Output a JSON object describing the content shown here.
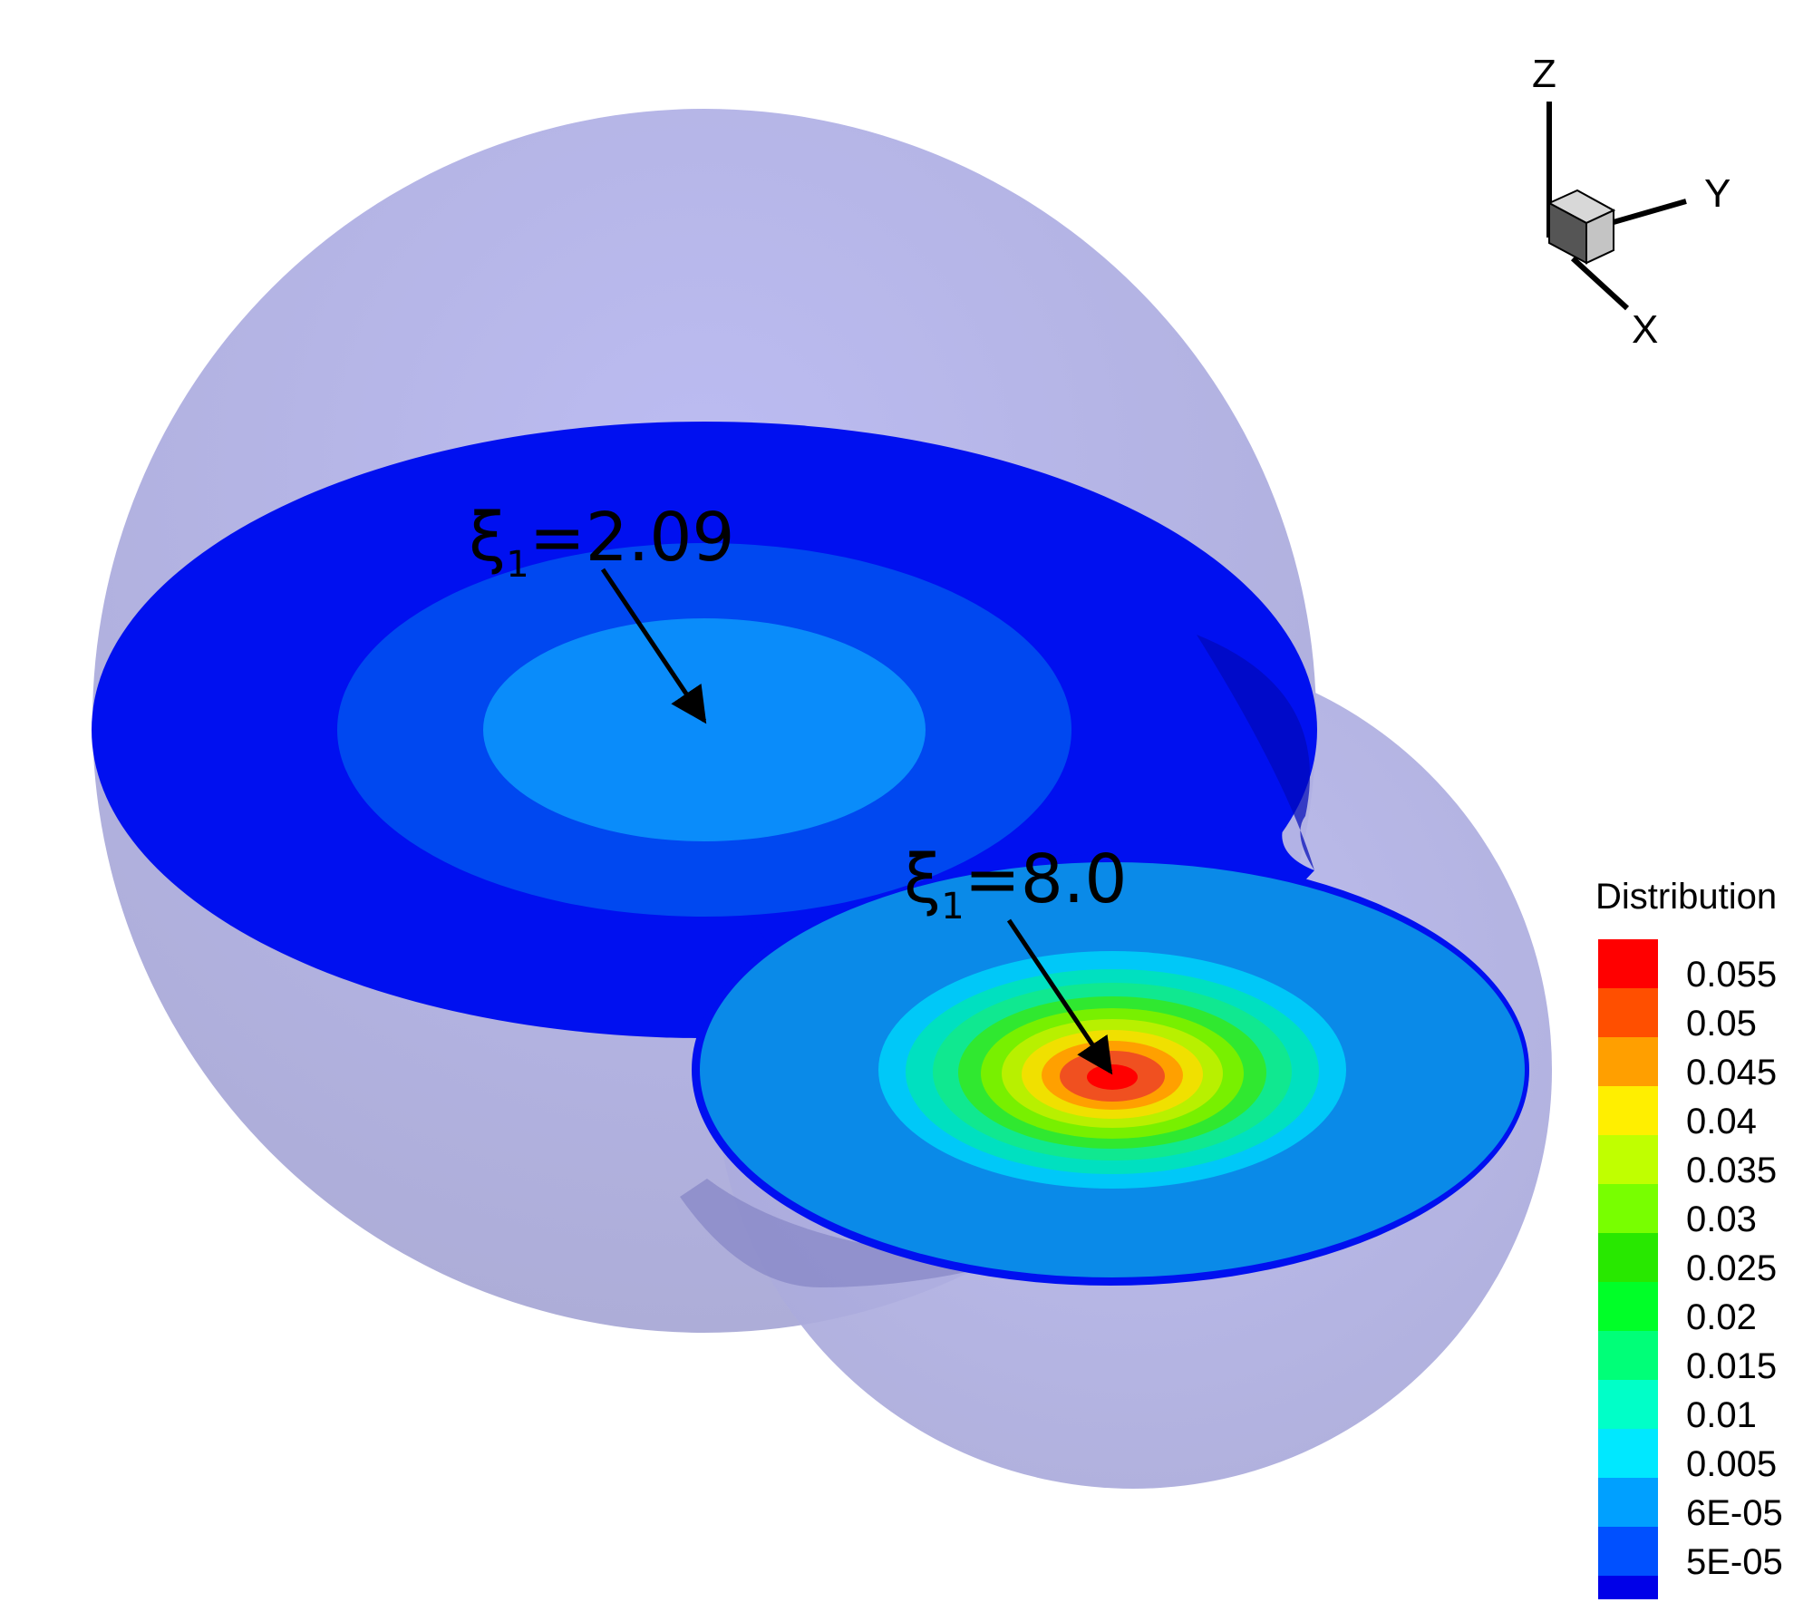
{
  "axes_triad": {
    "z_label": "Z",
    "y_label": "Y",
    "x_label": "X"
  },
  "annotations": [
    {
      "symbol": "ξ",
      "subscript": "1",
      "value": "=2.09"
    },
    {
      "symbol": "ξ",
      "subscript": "1",
      "value": "=8.0"
    }
  ],
  "legend": {
    "title": "Distribution",
    "placement": "right",
    "levels": [
      {
        "label": "0.055",
        "color": "#ff0000"
      },
      {
        "label": "0.05",
        "color": "#ff4f00"
      },
      {
        "label": "0.045",
        "color": "#ff9f00"
      },
      {
        "label": "0.04",
        "color": "#ffef00"
      },
      {
        "label": "0.035",
        "color": "#c0ff00"
      },
      {
        "label": "0.03",
        "color": "#78ff00"
      },
      {
        "label": "0.025",
        "color": "#28e800"
      },
      {
        "label": "0.02",
        "color": "#00ff28"
      },
      {
        "label": "0.015",
        "color": "#00ff78"
      },
      {
        "label": "0.01",
        "color": "#00ffc8"
      },
      {
        "label": "0.005",
        "color": "#00e8ff"
      },
      {
        "label": "6E-05",
        "color": "#00a0ff"
      },
      {
        "label": "5E-05",
        "color": "#0050ff"
      }
    ],
    "bottom_color": "#0000e8"
  },
  "colors": {
    "sphere": "#b0b0e4",
    "outer_disk": "#0010f0",
    "mid_disk": "#0048f0",
    "inner_disk_1": "#0a8cfa",
    "disk_2_base": "#0a8ae8"
  }
}
